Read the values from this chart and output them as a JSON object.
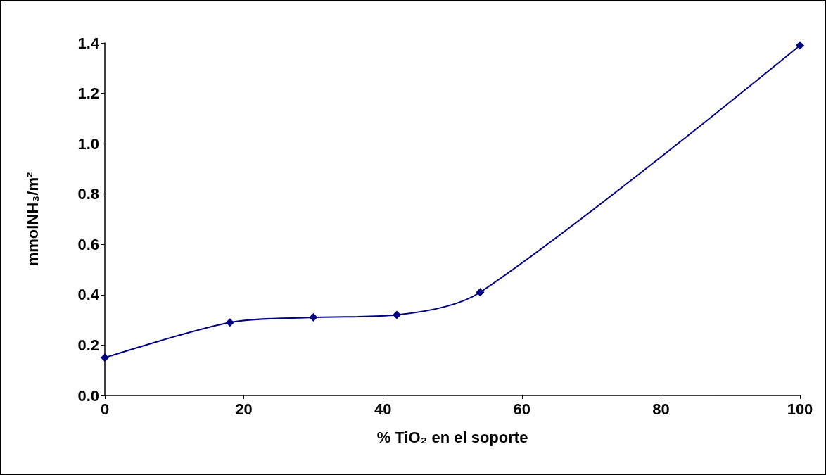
{
  "chart_data": {
    "type": "line",
    "xlabel": "% TiO₂ en el soporte",
    "ylabel": "mmolNH₃/m²",
    "x": [
      0,
      18,
      30,
      42,
      54,
      100
    ],
    "series": [
      {
        "color": "#000080",
        "values": [
          0.15,
          0.29,
          0.31,
          0.32,
          0.41,
          1.39
        ]
      }
    ],
    "xlim": [
      0,
      100
    ],
    "xticks": [
      0,
      20,
      40,
      60,
      80,
      100
    ],
    "ylim": [
      0,
      1.4
    ],
    "yticks": [
      {
        "value": 0,
        "label": "0.0"
      },
      {
        "value": 0.2,
        "label": "0.2"
      },
      {
        "value": 0.4,
        "label": "0.4"
      },
      {
        "value": 0.6,
        "label": "0.6"
      },
      {
        "value": 0.8,
        "label": "0.8"
      },
      {
        "value": 1.0,
        "label": "1.0"
      },
      {
        "value": 1.2,
        "label": "1.2"
      },
      {
        "value": 1.4,
        "label": "1.4"
      }
    ],
    "grid": false,
    "marker": "diamond",
    "line_style": "solid"
  }
}
